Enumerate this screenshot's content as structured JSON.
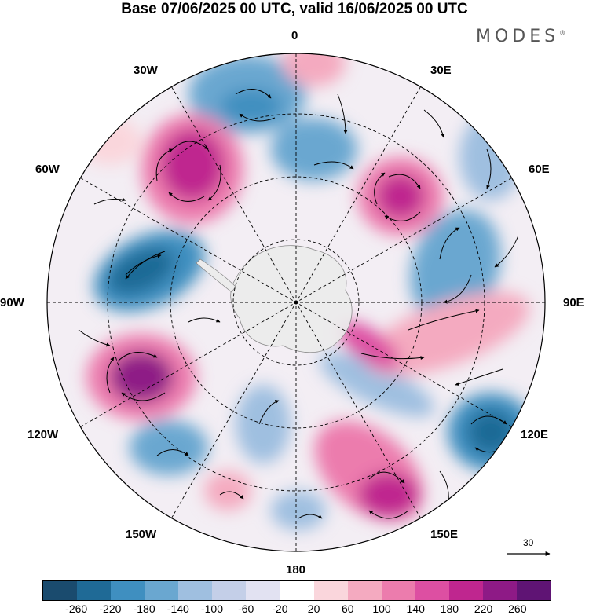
{
  "title": "Base 07/06/2025 00 UTC, valid 16/06/2025 00 UTC",
  "brand": "MODES",
  "brand_mark": "®",
  "longitude_labels": {
    "lon_0": "0",
    "lon_30e": "30E",
    "lon_60e": "60E",
    "lon_90e": "90E",
    "lon_120e": "120E",
    "lon_150e": "150E",
    "lon_180": "180",
    "lon_150w": "150W",
    "lon_120w": "120W",
    "lon_90w": "90W",
    "lon_60w": "60W",
    "lon_30w": "30W"
  },
  "vector_scale_label": "30",
  "colorbar": {
    "colors": [
      "#1a4b6e",
      "#1f6a96",
      "#3f8fc0",
      "#6aa7d0",
      "#9fbfe0",
      "#c4cfe8",
      "#e2e2f2",
      "#ffffff",
      "#fad6dc",
      "#f4aac0",
      "#ec7cad",
      "#dd4fa2",
      "#bf268f",
      "#8e1a86",
      "#5f1474"
    ],
    "tick_labels": [
      "-260",
      "-220",
      "-180",
      "-140",
      "-100",
      "-60",
      "-20",
      "20",
      "60",
      "100",
      "140",
      "180",
      "220",
      "260"
    ]
  },
  "map_colors": {
    "ice": "#ececec",
    "coast": "#808080",
    "grid": "#000000"
  }
}
